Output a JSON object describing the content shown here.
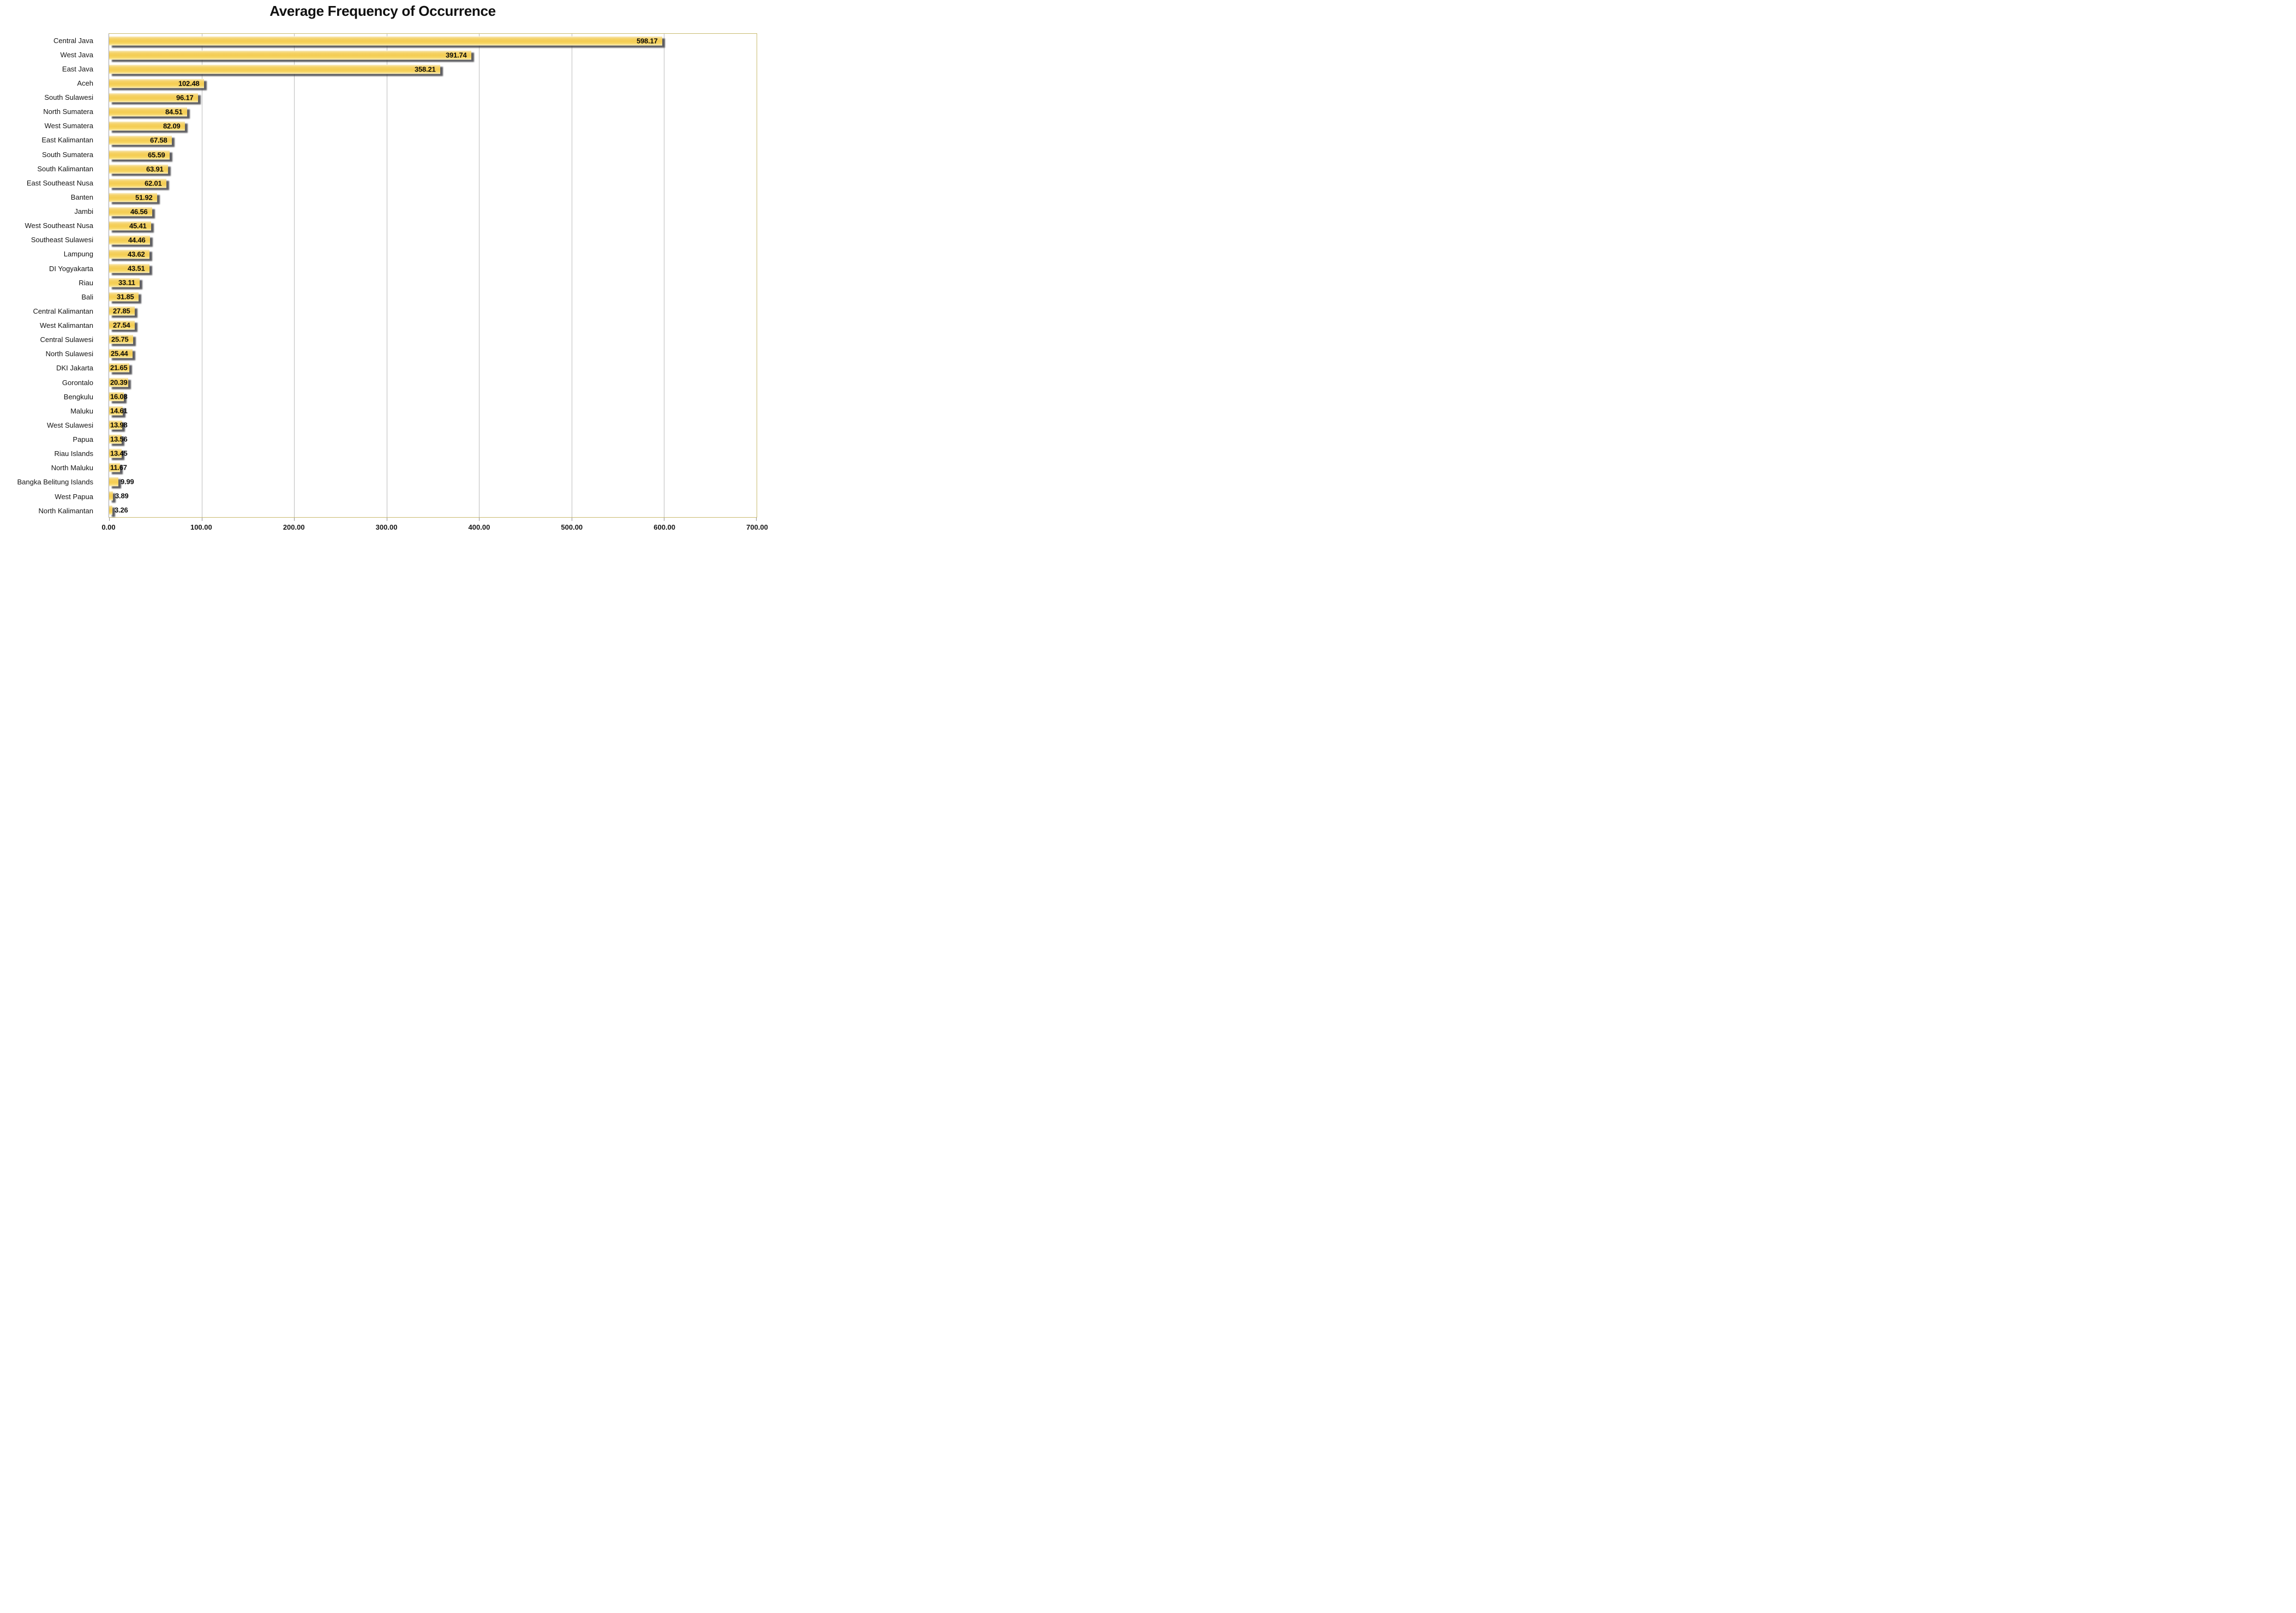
{
  "title": "Average Frequency of Occurrence",
  "chart_data": {
    "type": "bar",
    "orientation": "horizontal",
    "title": "Average Frequency of Occurrence",
    "categories": [
      "Central Java",
      "West Java",
      "East Java",
      "Aceh",
      "South Sulawesi",
      "North Sumatera",
      "West Sumatera",
      "East Kalimantan",
      "South Sumatera",
      "South Kalimantan",
      "East Southeast Nusa",
      "Banten",
      "Jambi",
      "West Southeast Nusa",
      "Southeast Sulawesi",
      "Lampung",
      "DI Yogyakarta",
      "Riau",
      "Bali",
      "Central Kalimantan",
      "West Kalimantan",
      "Central Sulawesi",
      "North Sulawesi",
      "DKI Jakarta",
      "Gorontalo",
      "Bengkulu",
      "Maluku",
      "West Sulawesi",
      "Papua",
      "Riau Islands",
      "North Maluku",
      "Bangka Belitung Islands",
      "West Papua",
      "North Kalimantan"
    ],
    "values": [
      598.17,
      391.74,
      358.21,
      102.48,
      96.17,
      84.51,
      82.09,
      67.58,
      65.59,
      63.91,
      62.01,
      51.92,
      46.56,
      45.41,
      44.46,
      43.62,
      43.51,
      33.11,
      31.85,
      27.85,
      27.54,
      25.75,
      25.44,
      21.65,
      20.39,
      16.08,
      14.61,
      13.98,
      13.56,
      13.45,
      11.67,
      9.99,
      3.89,
      3.26
    ],
    "xlabel": "",
    "ylabel": "",
    "xlim": [
      0,
      700
    ],
    "x_tick_labels": [
      "0.00",
      "100.00",
      "200.00",
      "300.00",
      "400.00",
      "500.00",
      "600.00",
      "700.00"
    ],
    "x_tick_step": 100,
    "grid": true,
    "legend": false,
    "data_labels": "2 decimals, inside end of bar (outside for values < 10)",
    "bar_color": "#f5d15e",
    "bar_highlight": "#fdf4d4",
    "shadow_color": "#32323a",
    "plot_border_color": "#cabc72",
    "gridline_color": "#bdbdbd",
    "axis_line_color": "#a0a0a6",
    "text_color": "#141414",
    "background": "#ffffff"
  }
}
